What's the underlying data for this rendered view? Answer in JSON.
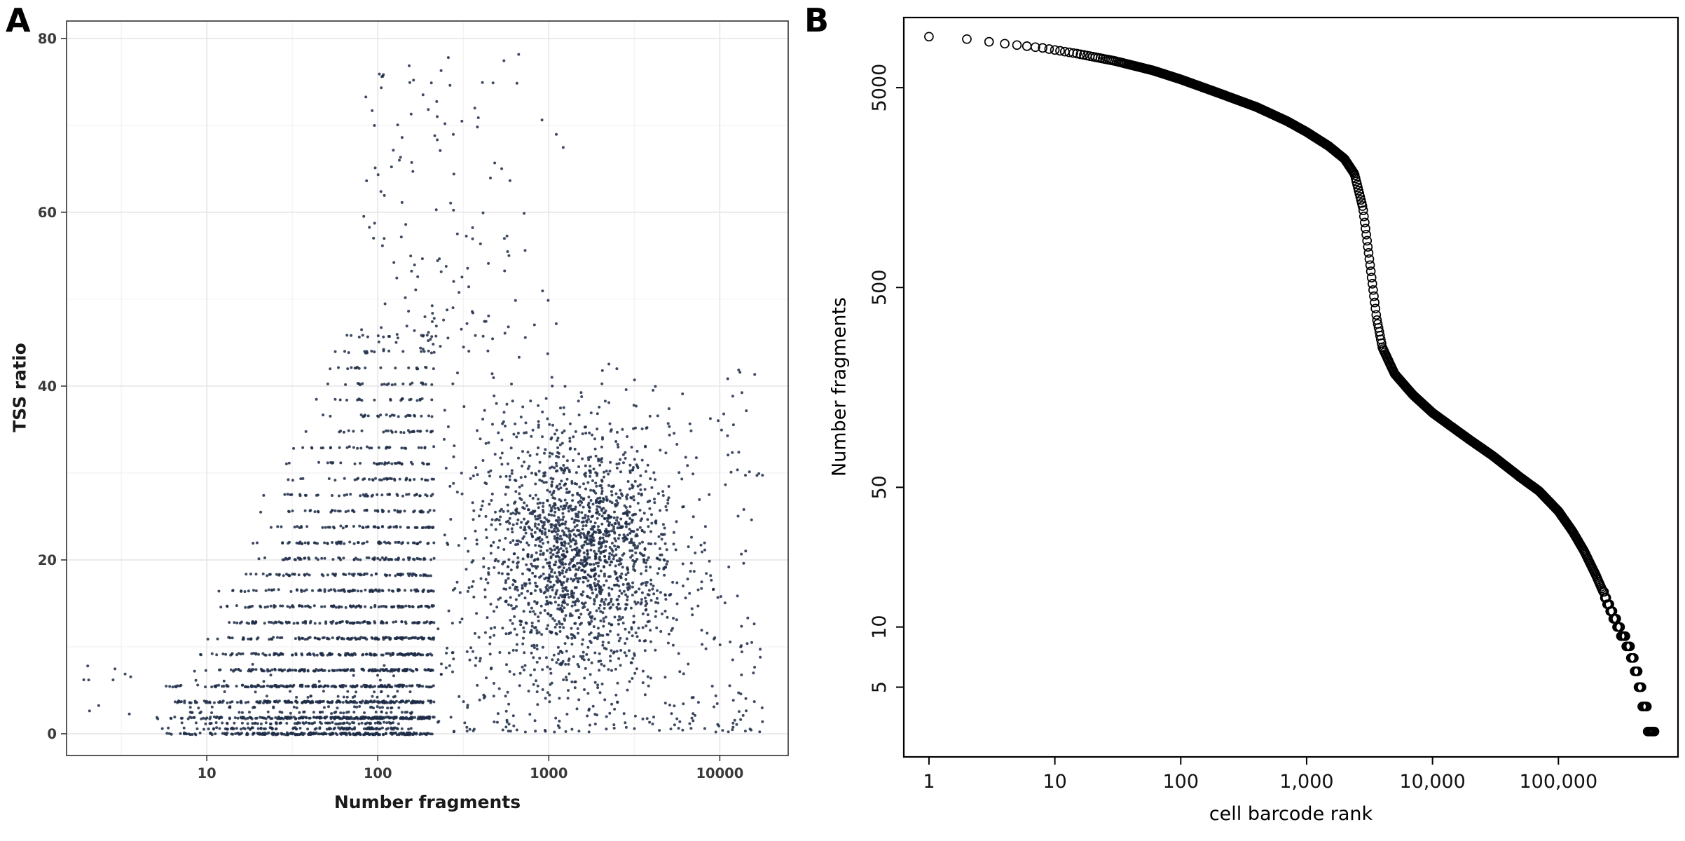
{
  "figure": {
    "background": "#ffffff",
    "panels": [
      {
        "label": "A"
      },
      {
        "label": "B"
      }
    ]
  },
  "chart_data": [
    {
      "type": "scatter",
      "panel": "A",
      "title": "",
      "xlabel": "Number fragments",
      "ylabel": "TSS ratio",
      "x_scale": "log10",
      "x_tick_values": [
        10,
        100,
        1000,
        10000
      ],
      "x_tick_labels": [
        "10",
        "100",
        "1000",
        "10000"
      ],
      "x_minor_log10": [
        0.5,
        1.5,
        2.5,
        3.5
      ],
      "x_range_log10": [
        0.18,
        4.4
      ],
      "y_tick_values": [
        0,
        20,
        40,
        60,
        80
      ],
      "y_minor": [
        10,
        30,
        50,
        70
      ],
      "y_range": [
        -2.5,
        82
      ],
      "grid": true,
      "legend": "none",
      "style": {
        "point_color": "#1d2c47",
        "point_radius": 2.0,
        "point_opacity": 0.85,
        "grid_major_color": "#e4e4e4",
        "grid_minor_color": "#f2f2f2",
        "panel_border_color": "#3c3c3c",
        "tick_color": "#333333",
        "tick_label_color": "#3a3a3a"
      },
      "seed": 1337,
      "clusters": [
        {
          "kind": "bands",
          "y_offset": 0,
          "band_spacing": 1.83,
          "bands": 26,
          "base_count": 230,
          "count_decay": 9,
          "xmin_log10_base": 0.62,
          "xmin_log10_slope": 0.045,
          "xmax_log10": 2.33,
          "y_jitter": 0.12
        },
        {
          "kind": "bands",
          "y_offset": 0.61,
          "band_spacing": 0.61,
          "bands": 13,
          "base_count": 110,
          "count_decay": 3,
          "xmin_log10_base": 0.7,
          "xmin_log10_slope": 0.02,
          "xmax_log10": 2.2,
          "y_jitter": 0.1
        },
        {
          "kind": "gaussian",
          "n": 1750,
          "x_log10_mean": 3.18,
          "x_log10_sd": 0.27,
          "y_mean": 21,
          "y_sd": 7.5,
          "x_log10_clip": [
            2.4,
            4.05
          ],
          "y_clip": [
            0.5,
            44
          ]
        },
        {
          "kind": "uniform",
          "n": 430,
          "x_log10_range": [
            2.35,
            4.25
          ],
          "y_range": [
            0.2,
            42
          ],
          "y_bias": 1.7
        },
        {
          "kind": "peak",
          "n": 150,
          "x_log10_mean": 2.4,
          "x_log10_sd": 0.33,
          "x_log10_clip": [
            1.9,
            3.4
          ],
          "y_min": 44,
          "y_max": 78.5,
          "y_power": 1.7
        },
        {
          "kind": "uniform",
          "n": 10,
          "x_log10_range": [
            0.28,
            0.6
          ],
          "y_range": [
            0.4,
            9
          ],
          "y_bias": 1.0
        }
      ]
    },
    {
      "type": "scatter",
      "panel": "B",
      "title": "",
      "xlabel": "cell barcode rank",
      "ylabel": "Number fragments",
      "x_scale": "log10",
      "y_scale": "log10",
      "x_tick_values": [
        1,
        10,
        100,
        1000,
        10000,
        100000
      ],
      "x_tick_labels": [
        "1",
        "10",
        "100",
        "1,000",
        "10,000",
        "100,000"
      ],
      "y_tick_values": [
        5,
        10,
        50,
        500,
        5000
      ],
      "y_tick_labels": [
        "5",
        "10",
        "50",
        "500",
        "5000"
      ],
      "x_range_log10": [
        -0.2,
        5.95
      ],
      "y_range_log10": [
        0.35,
        4.05
      ],
      "grid": false,
      "legend": "none",
      "marker": "open-circle",
      "style": {
        "point_radius": 6,
        "stroke": "#000000",
        "stroke_width": 1.7,
        "box_color": "#000000",
        "tick_label_color": "#111111"
      },
      "n_points": 950,
      "min_fragments": 3,
      "quantize_below": 15,
      "curve_control_points": [
        [
          1,
          9000
        ],
        [
          2,
          8750
        ],
        [
          4,
          8300
        ],
        [
          8,
          7900
        ],
        [
          15,
          7400
        ],
        [
          30,
          6800
        ],
        [
          60,
          6100
        ],
        [
          100,
          5500
        ],
        [
          200,
          4700
        ],
        [
          400,
          4000
        ],
        [
          700,
          3400
        ],
        [
          1000,
          3000
        ],
        [
          1500,
          2550
        ],
        [
          2000,
          2200
        ],
        [
          2400,
          1850
        ],
        [
          2800,
          1250
        ],
        [
          3200,
          640
        ],
        [
          3600,
          350
        ],
        [
          4000,
          250
        ],
        [
          5000,
          185
        ],
        [
          7000,
          145
        ],
        [
          10000,
          118
        ],
        [
          15000,
          98
        ],
        [
          20000,
          86
        ],
        [
          30000,
          72
        ],
        [
          50000,
          56
        ],
        [
          70000,
          48
        ],
        [
          100000,
          38
        ],
        [
          130000,
          30
        ],
        [
          160000,
          24
        ],
        [
          200000,
          18
        ],
        [
          250000,
          13
        ],
        [
          300000,
          10
        ],
        [
          360000,
          8
        ],
        [
          420000,
          6
        ],
        [
          480000,
          4
        ],
        [
          540000,
          3
        ],
        [
          580000,
          3
        ]
      ]
    }
  ]
}
